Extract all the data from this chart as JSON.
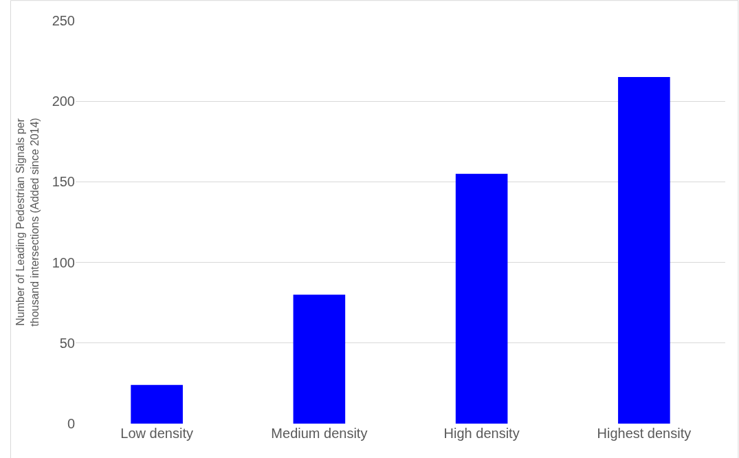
{
  "chart_data": {
    "type": "bar",
    "ylabel": "Number of Leading Pedestrian Signals per thousand intersections (Added since 2014)",
    "categories": [
      "Low density",
      "Medium density",
      "High density",
      "Highest density"
    ],
    "values": [
      24,
      80,
      155,
      215
    ],
    "color": "#0000ff",
    "ylim": [
      0,
      250
    ],
    "yticks": [
      0,
      50,
      100,
      150,
      200,
      250
    ],
    "grid": "y"
  }
}
